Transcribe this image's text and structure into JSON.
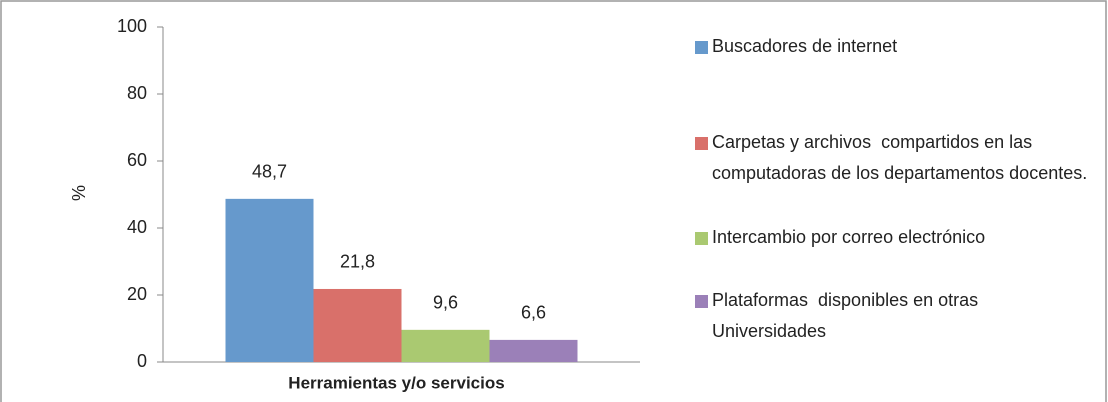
{
  "chart_data": {
    "type": "bar",
    "categories": [
      "Herramientas y/o servicios"
    ],
    "y_label": "%",
    "ylim": [
      0,
      100
    ],
    "yticks": [
      0,
      20,
      40,
      60,
      80,
      100
    ],
    "grid": false,
    "legend": "right",
    "series": [
      {
        "name": "Buscadores de internet",
        "color": "#6699cc",
        "values": [
          48.7
        ],
        "value_labels": [
          "48,7"
        ]
      },
      {
        "name": "Carpetas y archivos  compartidos en las computadoras de los departamentos docentes.",
        "color": "#d9706a",
        "values": [
          21.8
        ],
        "value_labels": [
          "21,8"
        ]
      },
      {
        "name": "Intercambio por correo electrónico",
        "color": "#aac971",
        "values": [
          9.6
        ],
        "value_labels": [
          "9,6"
        ]
      },
      {
        "name": "Plataformas  disponibles en otras Universidades",
        "color": "#9b80b8",
        "values": [
          6.6
        ],
        "value_labels": [
          "6,6"
        ]
      }
    ]
  }
}
